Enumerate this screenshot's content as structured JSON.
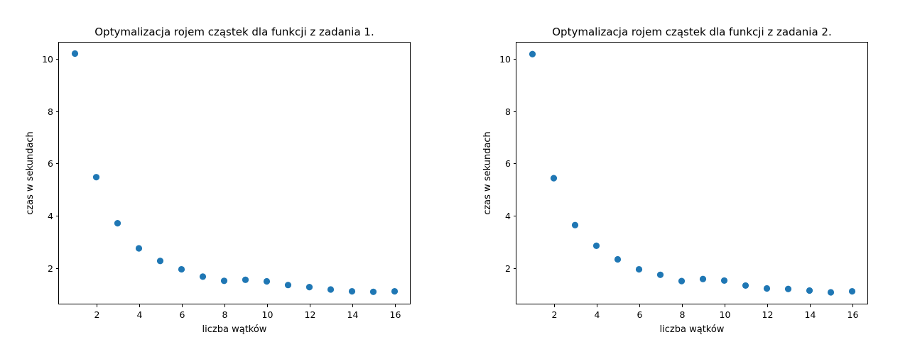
{
  "chart_data": [
    {
      "type": "scatter",
      "title": "Optymalizacja rojem cząstek dla funkcji z zadania 1.",
      "xlabel": "liczba wątków",
      "ylabel": "czas w sekundach",
      "xlim": [
        0.25,
        16.75
      ],
      "ylim": [
        0.62,
        10.62
      ],
      "xticks": [
        2,
        4,
        6,
        8,
        10,
        12,
        14,
        16
      ],
      "yticks": [
        2,
        4,
        6,
        8,
        10
      ],
      "marker_color": "#1f77b4",
      "grid": false,
      "series": [
        {
          "x": [
            1,
            2,
            3,
            4,
            5,
            6,
            7,
            8,
            9,
            10,
            11,
            12,
            13,
            14,
            15,
            16
          ],
          "y": [
            10.2,
            5.48,
            3.72,
            2.76,
            2.28,
            1.96,
            1.68,
            1.52,
            1.56,
            1.5,
            1.36,
            1.28,
            1.19,
            1.12,
            1.1,
            1.12
          ]
        }
      ]
    },
    {
      "type": "scatter",
      "title": "Optymalizacja rojem cząstek dla funkcji z zadania 2.",
      "xlabel": "liczba wątków",
      "ylabel": "czas w sekundach",
      "xlim": [
        0.25,
        16.75
      ],
      "ylim": [
        0.62,
        10.62
      ],
      "xticks": [
        2,
        4,
        6,
        8,
        10,
        12,
        14,
        16
      ],
      "yticks": [
        2,
        4,
        6,
        8,
        10
      ],
      "marker_color": "#1f77b4",
      "grid": false,
      "series": [
        {
          "x": [
            1,
            2,
            3,
            4,
            5,
            6,
            7,
            8,
            9,
            10,
            11,
            12,
            13,
            14,
            15,
            16
          ],
          "y": [
            10.18,
            5.44,
            3.65,
            2.86,
            2.34,
            1.96,
            1.75,
            1.51,
            1.59,
            1.53,
            1.34,
            1.23,
            1.21,
            1.15,
            1.08,
            1.12
          ]
        }
      ]
    }
  ]
}
